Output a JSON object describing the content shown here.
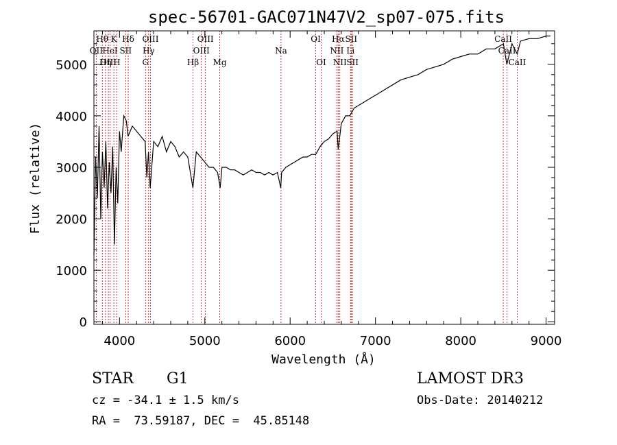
{
  "chart_data": {
    "type": "line",
    "title": "spec-56701-GAC071N47V2_sp07-075.fits",
    "xlabel": "Wavelength (Å)",
    "ylabel": "Flux (relative)",
    "xlim": [
      3700,
      9100
    ],
    "ylim": [
      -50,
      5650
    ],
    "x_ticks": [
      4000,
      5000,
      6000,
      7000,
      8000,
      9000
    ],
    "x_tick_labels": [
      "4000",
      "5000",
      "6000",
      "7000",
      "8000",
      "9000"
    ],
    "y_ticks": [
      0,
      1000,
      2000,
      3000,
      4000,
      5000
    ],
    "y_tick_labels": [
      "0",
      "1000",
      "2000",
      "3000",
      "4000",
      "5000"
    ],
    "series": [
      {
        "name": "flux",
        "x": [
          3700,
          3720,
          3740,
          3760,
          3780,
          3800,
          3820,
          3840,
          3860,
          3880,
          3900,
          3920,
          3940,
          3960,
          3980,
          4000,
          4020,
          4050,
          4080,
          4100,
          4150,
          4200,
          4250,
          4300,
          4320,
          4340,
          4360,
          4400,
          4450,
          4500,
          4550,
          4600,
          4650,
          4700,
          4750,
          4800,
          4860,
          4900,
          4950,
          5000,
          5050,
          5100,
          5150,
          5180,
          5200,
          5250,
          5300,
          5350,
          5400,
          5450,
          5500,
          5550,
          5600,
          5650,
          5700,
          5750,
          5800,
          5850,
          5890,
          5900,
          5950,
          6000,
          6050,
          6100,
          6150,
          6200,
          6250,
          6300,
          6350,
          6400,
          6450,
          6500,
          6550,
          6563,
          6600,
          6650,
          6700,
          6750,
          6800,
          6900,
          7000,
          7100,
          7200,
          7300,
          7400,
          7500,
          7600,
          7700,
          7800,
          7900,
          8000,
          8100,
          8200,
          8300,
          8400,
          8500,
          8540,
          8600,
          8662,
          8700,
          8800,
          8900,
          9000,
          9050
        ],
        "values": [
          1300,
          3200,
          2400,
          3800,
          2000,
          3300,
          2600,
          3500,
          2200,
          3100,
          2500,
          3400,
          1500,
          3000,
          2300,
          3700,
          3300,
          4000,
          3900,
          3600,
          3800,
          3700,
          3600,
          3500,
          2800,
          3300,
          2600,
          3500,
          3400,
          3600,
          3300,
          3500,
          3400,
          3200,
          3300,
          3200,
          2600,
          3300,
          3200,
          3100,
          3000,
          3000,
          2900,
          2600,
          3000,
          3000,
          2950,
          2950,
          2900,
          2850,
          2900,
          2950,
          2900,
          2900,
          2850,
          2900,
          2850,
          2900,
          2600,
          2900,
          3000,
          3050,
          3100,
          3150,
          3200,
          3200,
          3250,
          3250,
          3400,
          3500,
          3550,
          3650,
          3700,
          3350,
          3850,
          4000,
          4000,
          4150,
          4200,
          4300,
          4400,
          4500,
          4600,
          4700,
          4750,
          4800,
          4900,
          4950,
          5000,
          5100,
          5150,
          5200,
          5200,
          5300,
          5300,
          5400,
          5000,
          5400,
          5200,
          5450,
          5500,
          5500,
          5550,
          5550
        ]
      }
    ],
    "line_markers": [
      {
        "label": "Hθ",
        "x": 3798,
        "row": 0
      },
      {
        "label": "OII",
        "x": 3727,
        "row": 1
      },
      {
        "label": "OIII",
        "x": 3869,
        "row": 2
      },
      {
        "label": "HeI",
        "x": 3889,
        "row": 1
      },
      {
        "label": "K",
        "x": 3934,
        "row": 0
      },
      {
        "label": "Hη",
        "x": 3835,
        "row": 2
      },
      {
        "label": "H",
        "x": 3969,
        "row": 2
      },
      {
        "label": "SII",
        "x": 4072,
        "row": 1
      },
      {
        "label": "Hδ",
        "x": 4102,
        "row": 0
      },
      {
        "label": "OIII",
        "x": 4363,
        "row": 0
      },
      {
        "label": "Hγ",
        "x": 4341,
        "row": 1
      },
      {
        "label": "G",
        "x": 4305,
        "row": 2
      },
      {
        "label": "Hβ",
        "x": 4861,
        "row": 2
      },
      {
        "label": "OIII",
        "x": 5007,
        "row": 0
      },
      {
        "label": "OIII",
        "x": 4959,
        "row": 1
      },
      {
        "label": "Mg",
        "x": 5175,
        "row": 2
      },
      {
        "label": "Na",
        "x": 5893,
        "row": 1
      },
      {
        "label": "OI",
        "x": 6300,
        "row": 0
      },
      {
        "label": "OI",
        "x": 6364,
        "row": 2
      },
      {
        "label": "Hα",
        "x": 6563,
        "row": 0
      },
      {
        "label": "NII",
        "x": 6548,
        "row": 1
      },
      {
        "label": "NII",
        "x": 6583,
        "row": 2
      },
      {
        "label": "SII",
        "x": 6716,
        "row": 0
      },
      {
        "label": "Li",
        "x": 6708,
        "row": 1
      },
      {
        "label": "SII",
        "x": 6731,
        "row": 2
      },
      {
        "label": "CaII",
        "x": 8498,
        "row": 0
      },
      {
        "label": "CaII",
        "x": 8542,
        "row": 1
      },
      {
        "label": "CaII",
        "x": 8662,
        "row": 2
      }
    ],
    "grid": false,
    "line_color": "#000000",
    "marker_color": "#cc0000"
  },
  "info": {
    "object_type": "STAR",
    "subclass": "G1",
    "survey": "LAMOST DR3",
    "redshift": "cz = -34.1 ± 1.5 km/s",
    "obs_date": "Obs-Date: 20140212",
    "coords": "RA =  73.59187, DEC =  45.85148"
  }
}
